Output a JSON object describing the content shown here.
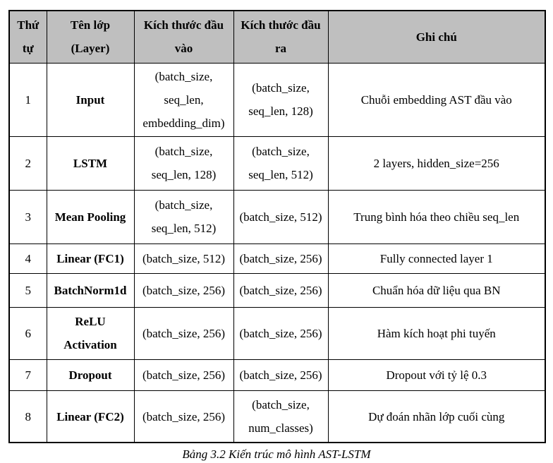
{
  "colors": {
    "header_bg": "#bfbfbf",
    "border": "#000000",
    "text": "#000000"
  },
  "table": {
    "headers": [
      "Thứ\ntự",
      "Tên lớp\n(Layer)",
      "Kích thước đầu\nvào",
      "Kích thước đầu\nra",
      "Ghi chú"
    ],
    "rows": [
      [
        "1",
        "Input",
        "(batch_size,\nseq_len,\nembedding_dim)",
        "(batch_size,\nseq_len, 128)",
        "Chuỗi embedding AST đầu vào"
      ],
      [
        "2",
        "LSTM",
        "(batch_size,\nseq_len, 128)",
        "(batch_size,\nseq_len, 512)",
        "2 layers, hidden_size=256"
      ],
      [
        "3",
        "Mean Pooling",
        "(batch_size,\nseq_len, 512)",
        "(batch_size, 512)",
        "Trung bình hóa theo chiều seq_len"
      ],
      [
        "4",
        "Linear (FC1)",
        "(batch_size, 512)",
        "(batch_size, 256)",
        "Fully connected layer 1"
      ],
      [
        "5",
        "BatchNorm1d",
        "(batch_size, 256)",
        "(batch_size, 256)",
        "Chuẩn hóa dữ liệu qua BN"
      ],
      [
        "6",
        "ReLU\nActivation",
        "(batch_size, 256)",
        "(batch_size, 256)",
        "Hàm kích hoạt phi tuyến"
      ],
      [
        "7",
        "Dropout",
        "(batch_size, 256)",
        "(batch_size, 256)",
        "Dropout với tỷ lệ 0.3"
      ],
      [
        "8",
        "Linear (FC2)",
        "(batch_size, 256)",
        "(batch_size,\nnum_classes)",
        "Dự đoán nhãn lớp cuối cùng"
      ]
    ]
  },
  "caption": "Bảng 3.2 Kiến trúc mô hình AST-LSTM"
}
